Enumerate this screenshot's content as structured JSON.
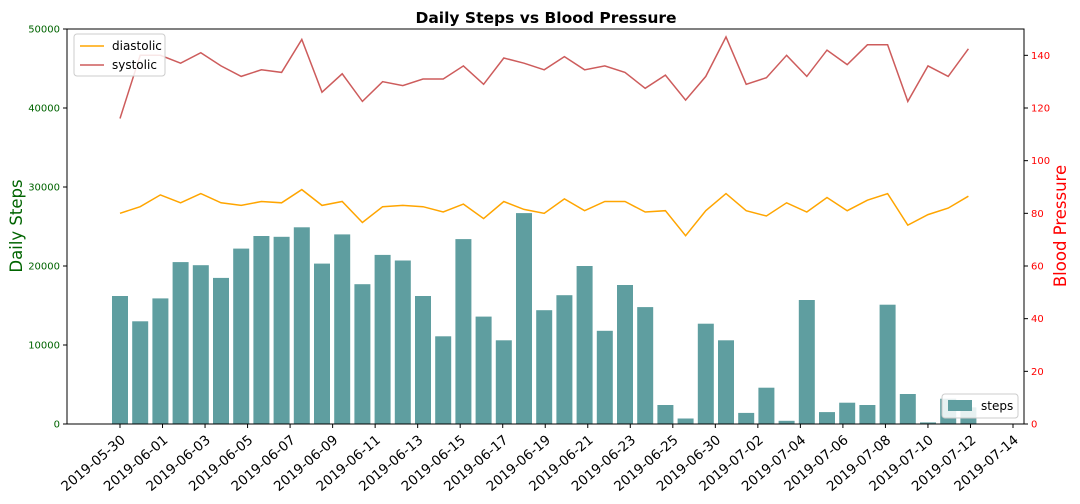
{
  "chart_data": {
    "type": "bar+line",
    "title": "Daily Steps vs Blood Pressure",
    "ylabel_left": "Daily Steps",
    "ylabel_right": "Blood Pressure",
    "ylim_left": [
      0,
      50000
    ],
    "ylim_right": [
      0,
      150
    ],
    "yticks_left": [
      "0",
      "10000",
      "20000",
      "30000",
      "40000",
      "50000"
    ],
    "yticks_right": [
      "0",
      "20",
      "40",
      "60",
      "80",
      "100",
      "120",
      "140"
    ],
    "xtick_labels": [
      "2019-05-30",
      "2019-06-01",
      "2019-06-03",
      "2019-06-05",
      "2019-06-07",
      "2019-06-09",
      "2019-06-11",
      "2019-06-13",
      "2019-06-15",
      "2019-06-17",
      "2019-06-19",
      "2019-06-21",
      "2019-06-23",
      "2019-06-25",
      "2019-06-30",
      "2019-07-02",
      "2019-07-04",
      "2019-07-06",
      "2019-07-08",
      "2019-07-10",
      "2019-07-12",
      "2019-07-14"
    ],
    "steps": {
      "name": "steps",
      "color": "#5f9ea0",
      "values": [
        16200,
        13000,
        15900,
        20500,
        20100,
        18500,
        22200,
        23800,
        23700,
        24900,
        20300,
        24000,
        17700,
        21400,
        20700,
        16200,
        11100,
        23400,
        13600,
        10600,
        26700,
        14400,
        16300,
        20000,
        11800,
        17600,
        14800,
        2400,
        700,
        12700,
        10600,
        1400,
        4600,
        400,
        15700,
        1500,
        2700,
        2400,
        15100,
        3800,
        200,
        3200,
        2100
      ]
    },
    "diastolic": {
      "name": "diastolic",
      "color": "#ffa500",
      "values": [
        80,
        82.5,
        87,
        84,
        87.5,
        84,
        83,
        84.5,
        84,
        89,
        83,
        84.5,
        76.5,
        82.5,
        83,
        82.5,
        80.5,
        83.5,
        78,
        84.5,
        81.5,
        80,
        85.5,
        81,
        84.5,
        84.5,
        80.5,
        81,
        71.5,
        81,
        87.5,
        81,
        79,
        84,
        80.5,
        86,
        81,
        85,
        87.5,
        75.5,
        79.5,
        82,
        86.5
      ]
    },
    "systolic": {
      "name": "systolic",
      "color": "#cd5c5c",
      "values": [
        116,
        140,
        140,
        137,
        141,
        136,
        132,
        134.5,
        133.5,
        146,
        126,
        133,
        122.5,
        130,
        128.5,
        131,
        131,
        136,
        129,
        139,
        137,
        134.5,
        139.5,
        134.5,
        136,
        133.5,
        127.5,
        132.5,
        123,
        132,
        147,
        129,
        131.5,
        140,
        132,
        142,
        136.5,
        144,
        144,
        122.5,
        136,
        132,
        142.5
      ]
    },
    "legend_lines_position": "top-left",
    "legend_bars_position": "bottom-right",
    "grid": false
  }
}
